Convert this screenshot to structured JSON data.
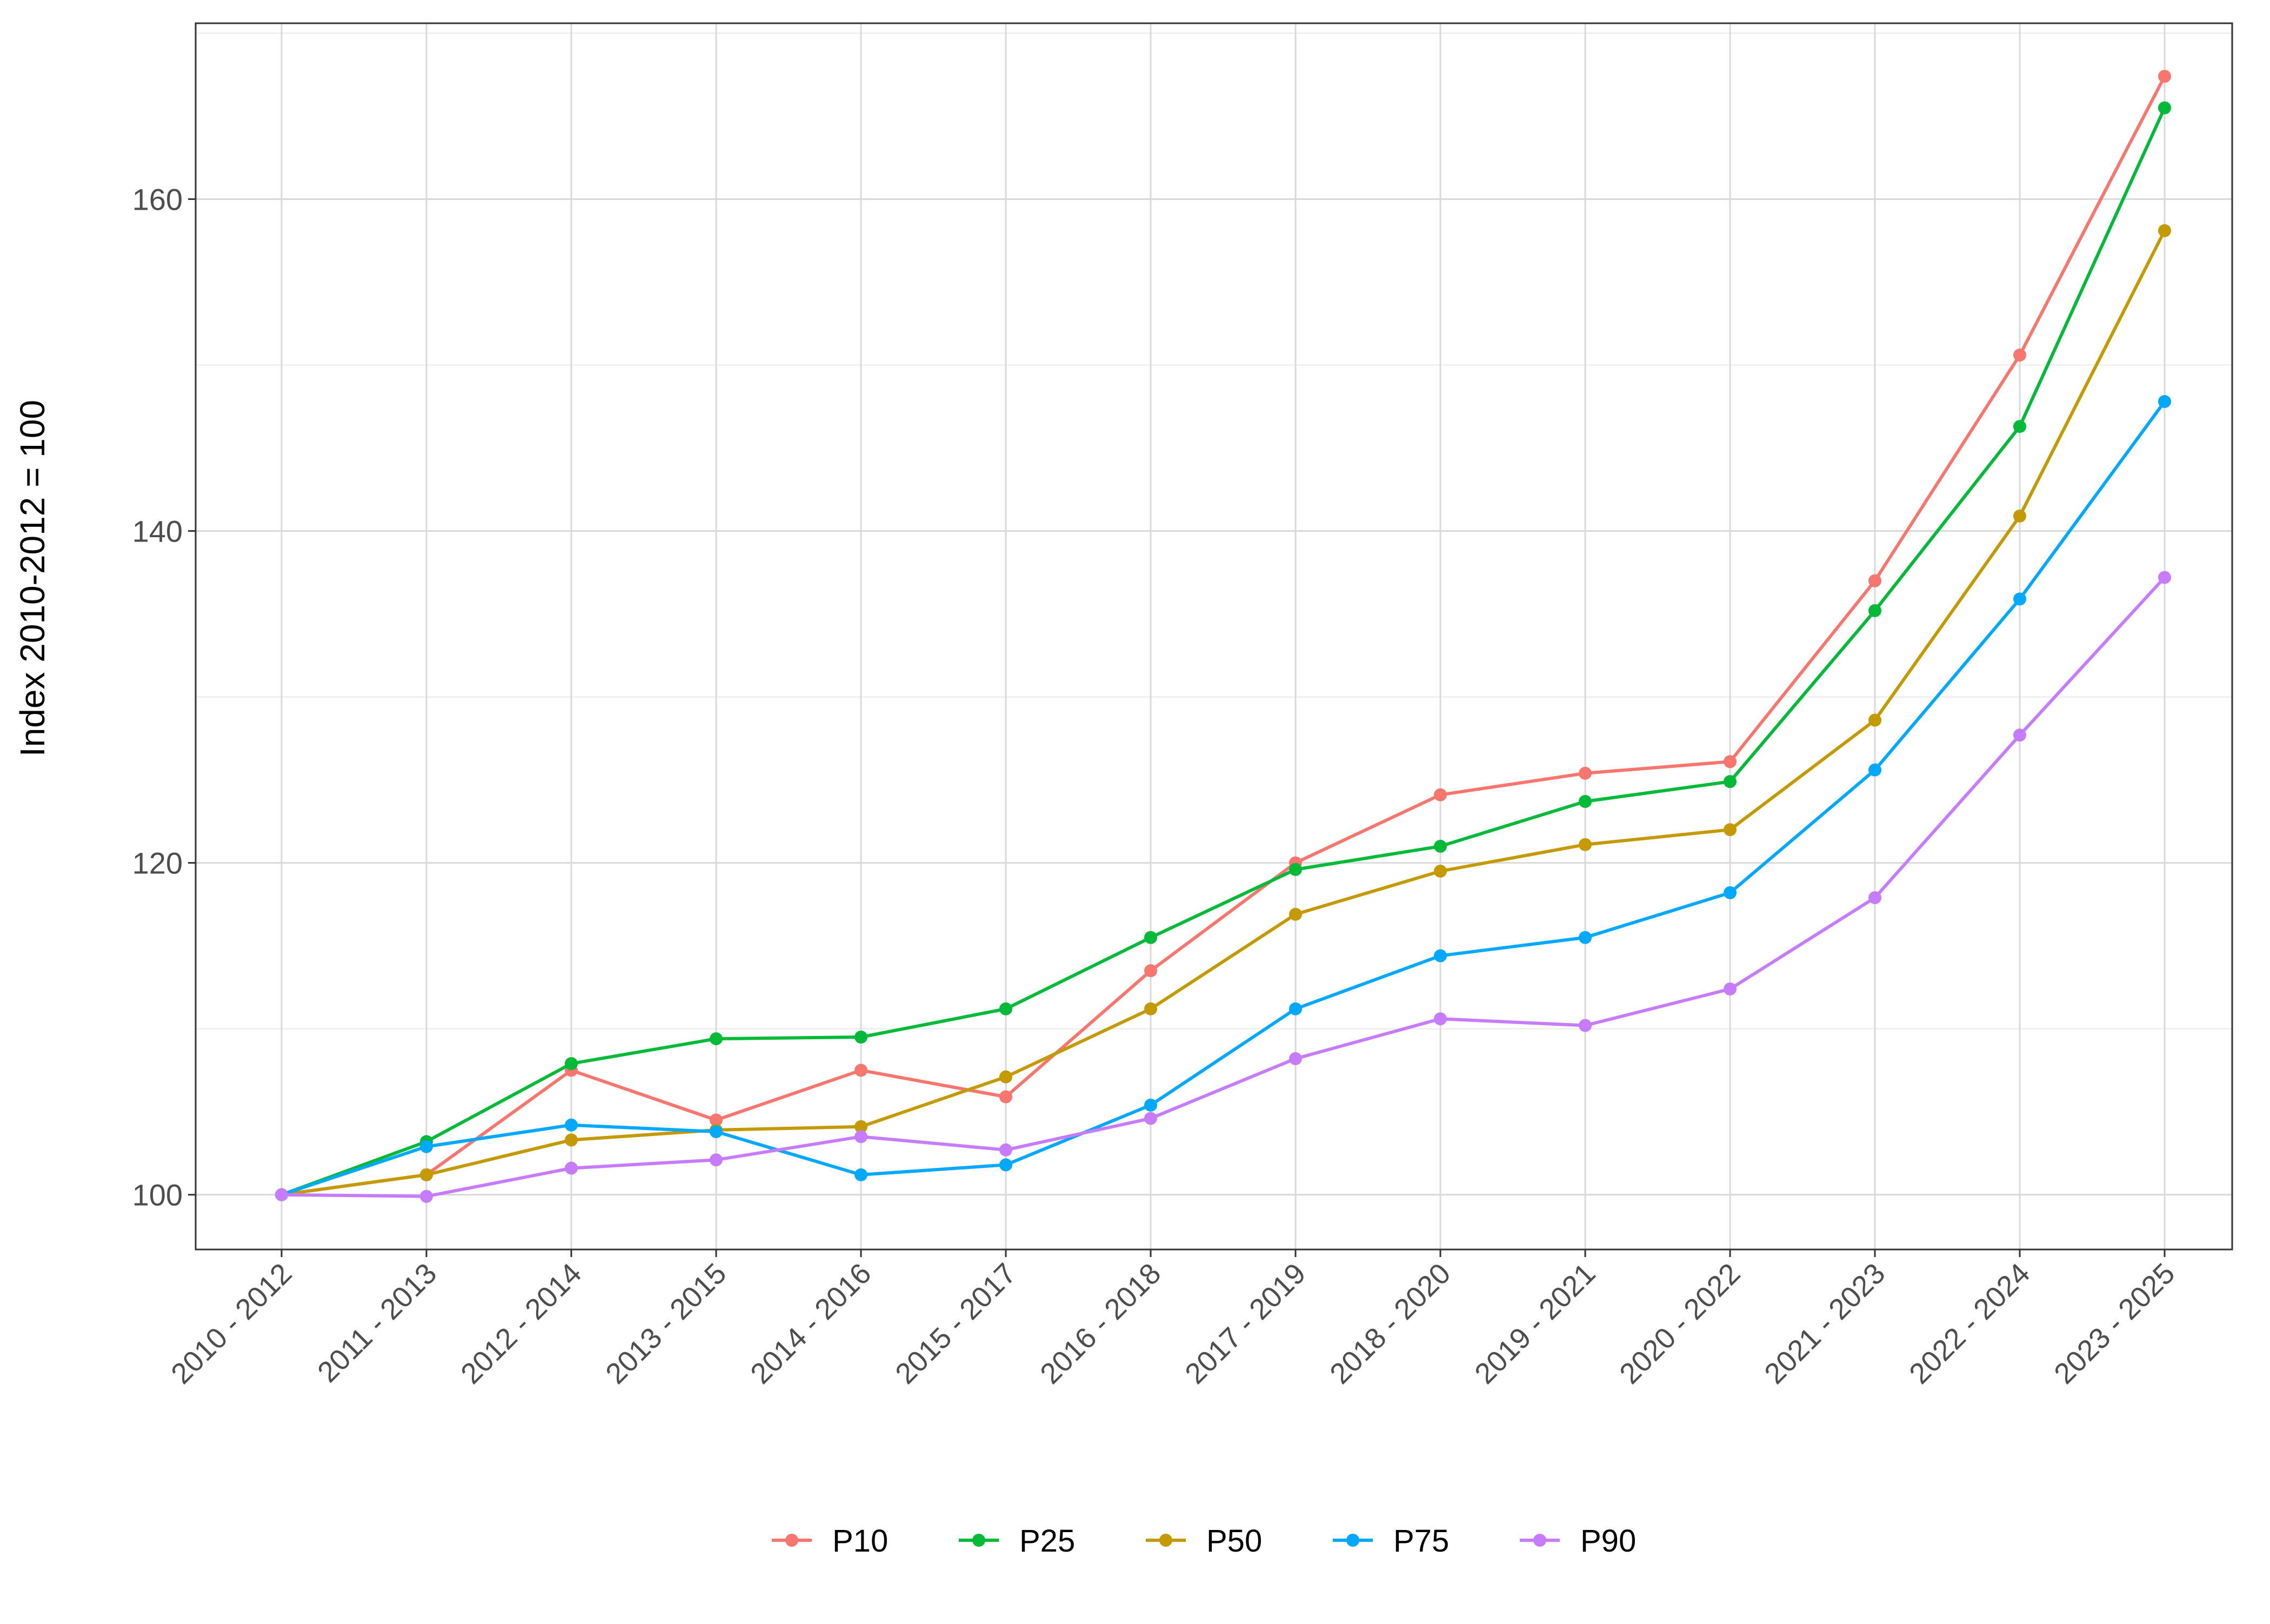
{
  "chart_data": {
    "type": "line",
    "title": "",
    "xlabel": "",
    "ylabel": "Index 2010-2012 = 100",
    "categories": [
      "2010 - 2012",
      "2011 - 2013",
      "2012 - 2014",
      "2013 - 2015",
      "2014 - 2016",
      "2015 - 2017",
      "2016 - 2018",
      "2017 - 2019",
      "2018 - 2020",
      "2019 - 2021",
      "2020 - 2022",
      "2021 - 2023",
      "2022 - 2024",
      "2023 - 2025"
    ],
    "ylim": [
      96.7,
      170.6
    ],
    "yticks": [
      100,
      120,
      140,
      160
    ],
    "yminor": [
      110,
      130,
      150,
      170
    ],
    "grid": true,
    "legend_position": "bottom",
    "series": [
      {
        "name": "P10",
        "color": "#F8766D",
        "values": [
          100,
          101.2,
          107.5,
          104.5,
          107.5,
          105.9,
          113.5,
          120.0,
          124.1,
          125.4,
          126.1,
          137.0,
          150.6,
          167.4
        ]
      },
      {
        "name": "P25",
        "color": "#00BA38",
        "values": [
          100,
          103.2,
          107.9,
          109.4,
          109.5,
          111.2,
          115.5,
          119.6,
          121.0,
          123.7,
          124.9,
          135.2,
          146.3,
          165.5
        ]
      },
      {
        "name": "P50",
        "color": "#C49A00",
        "values": [
          100,
          101.2,
          103.3,
          103.9,
          104.1,
          107.1,
          111.2,
          116.9,
          119.5,
          121.1,
          122.0,
          128.6,
          140.9,
          158.1
        ]
      },
      {
        "name": "P75",
        "color": "#00A9FF",
        "values": [
          100,
          102.9,
          104.2,
          103.8,
          101.2,
          101.8,
          105.4,
          111.2,
          114.4,
          115.5,
          118.2,
          125.6,
          135.9,
          147.8
        ]
      },
      {
        "name": "P90",
        "color": "#C77CFF",
        "values": [
          100,
          99.9,
          101.6,
          102.1,
          103.5,
          102.7,
          104.6,
          108.2,
          110.6,
          110.2,
          112.4,
          117.9,
          127.7,
          137.2
        ]
      }
    ]
  }
}
